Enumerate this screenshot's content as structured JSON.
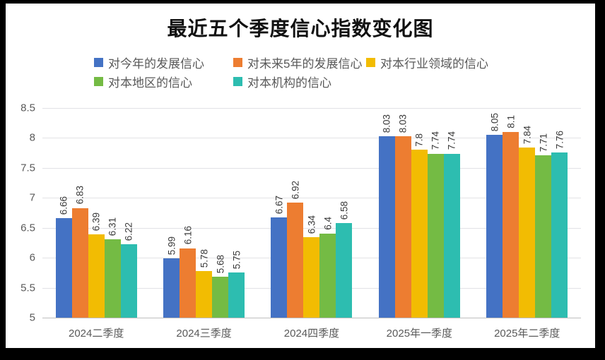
{
  "title": "最近五个季度信心指数变化图",
  "chart_data": {
    "type": "bar",
    "title": "最近五个季度信心指数变化图",
    "categories": [
      "2024二季度",
      "2024三季度",
      "2024四季度",
      "2025年一季度",
      "2025年二季度"
    ],
    "series": [
      {
        "name": "对今年的发展信心",
        "color": "#4472C4",
        "values": [
          6.66,
          5.99,
          6.67,
          8.03,
          8.05
        ]
      },
      {
        "name": "对未来5年的发展信心",
        "color": "#ED7D31",
        "values": [
          6.83,
          6.16,
          6.92,
          8.03,
          8.1
        ]
      },
      {
        "name": "对本行业领域的信心",
        "color": "#F2BC02",
        "values": [
          6.39,
          5.78,
          6.34,
          7.8,
          7.84
        ]
      },
      {
        "name": "对本地区的信心",
        "color": "#74BB44",
        "values": [
          6.31,
          5.68,
          6.4,
          7.74,
          7.71
        ]
      },
      {
        "name": "对本机构的信心",
        "color": "#2DBDB0",
        "values": [
          6.22,
          5.75,
          6.58,
          7.74,
          7.76
        ]
      }
    ],
    "ylim": [
      5,
      8.5
    ],
    "ytick_step": 0.5,
    "ytick_labels": [
      "8.5",
      "8",
      "7.5",
      "7",
      "6.5",
      "6",
      "5.5",
      "5"
    ],
    "grid": true,
    "data_labels": "rotated-vertical",
    "legend_position": "top",
    "legend_rows": [
      [
        0,
        1,
        2
      ],
      [
        3,
        4
      ]
    ],
    "xlabel": "",
    "ylabel": ""
  },
  "colors": {
    "frame": "#000000",
    "background": "#ffffff",
    "gridline": "#e2e2e6",
    "axis_line": "#bfbfbf",
    "axis_text": "#595959",
    "data_label_text": "#3a3a3a"
  }
}
